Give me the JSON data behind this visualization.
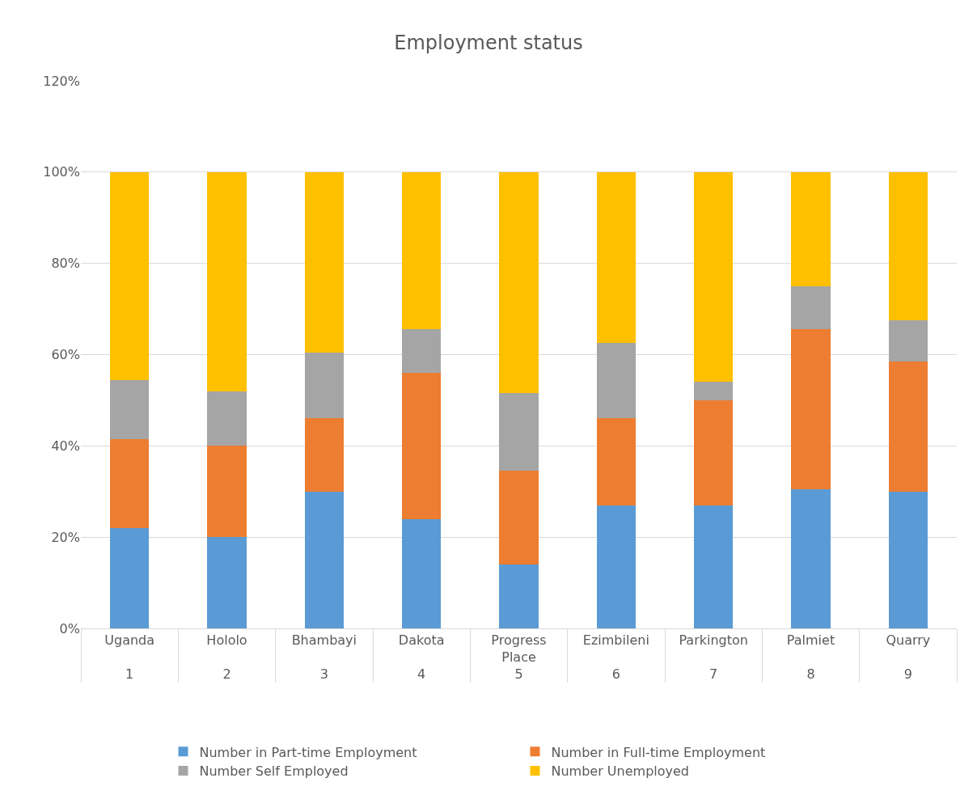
{
  "chart_data": {
    "type": "bar",
    "title": "Employment status",
    "stacked": true,
    "categories": [
      [
        "Uganda",
        "1"
      ],
      [
        "Hololo",
        "2"
      ],
      [
        "Bhambayi",
        "3"
      ],
      [
        "Dakota",
        "4"
      ],
      [
        "Progress Place",
        "5"
      ],
      [
        "Ezimbileni",
        "6"
      ],
      [
        "Parkington",
        "7"
      ],
      [
        "Palmiet",
        "8"
      ],
      [
        "Quarry",
        "9"
      ]
    ],
    "series": [
      {
        "name": "Number in Part-time Employment",
        "color": "#5b9bd5",
        "values": [
          22,
          20,
          30,
          24,
          14,
          27,
          27,
          30.5,
          30
        ]
      },
      {
        "name": "Number in Full-time Employment",
        "color": "#ed7d31",
        "values": [
          19.5,
          20,
          16,
          32,
          20.5,
          19,
          23,
          35,
          28.5
        ]
      },
      {
        "name": "Number Self Employed",
        "color": "#a5a5a5",
        "values": [
          13,
          12,
          14.5,
          9.5,
          17,
          16.5,
          4,
          9.5,
          9
        ]
      },
      {
        "name": "Number Unemployed",
        "color": "#ffc000",
        "values": [
          45.5,
          48,
          39.5,
          34.5,
          48.5,
          37.5,
          46,
          25,
          32.5
        ]
      }
    ],
    "ylim": [
      0,
      120
    ],
    "yticks": [
      {
        "value": 0,
        "label": "0%"
      },
      {
        "value": 20,
        "label": "20%"
      },
      {
        "value": 40,
        "label": "40%"
      },
      {
        "value": 60,
        "label": "60%"
      },
      {
        "value": 80,
        "label": "80%"
      },
      {
        "value": 100,
        "label": "100%"
      },
      {
        "value": 120,
        "label": "120%"
      }
    ],
    "grid": "y",
    "legend": "bottom"
  }
}
